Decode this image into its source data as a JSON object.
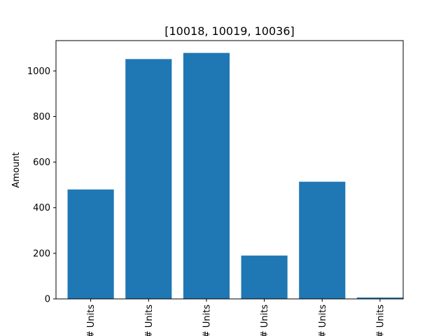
{
  "chart_data": {
    "type": "bar",
    "title": "[10018, 10019, 10036]",
    "xlabel": "",
    "ylabel": "Amount",
    "categories": [
      "# Units",
      "# Units",
      "# Units",
      "# Units",
      "# Units",
      "# Units"
    ],
    "values": [
      480,
      1052,
      1079,
      190,
      514,
      6
    ],
    "ylim": [
      0,
      1133
    ],
    "yticks": [
      0,
      200,
      400,
      600,
      800,
      1000
    ],
    "bar_color": "#1f77b4",
    "grid": false,
    "legend": "none"
  }
}
